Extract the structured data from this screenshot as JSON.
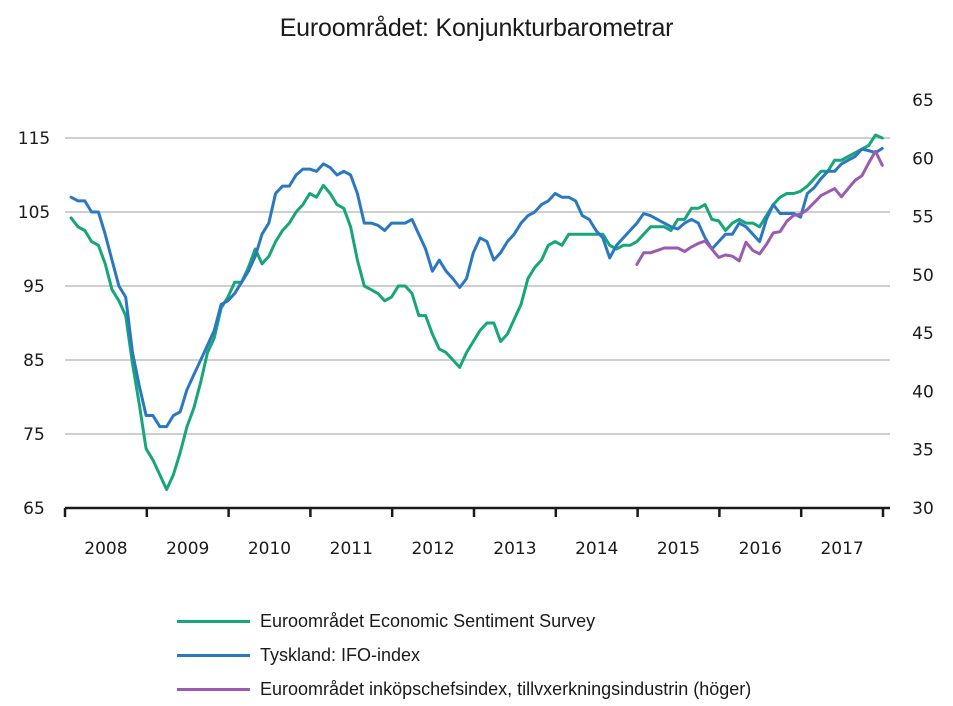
{
  "chart_data": {
    "type": "line",
    "title": "Euroområdet: Konjunkturbarometrar",
    "xlabel": "",
    "ylabel": "",
    "y2label": "",
    "grid": true,
    "legend_position": "bottom",
    "x_start": "2008-01",
    "x_frequency": "monthly",
    "x_categories": [
      "2008",
      "2009",
      "2010",
      "2011",
      "2012",
      "2013",
      "2014",
      "2015",
      "2016",
      "2017"
    ],
    "ylim": [
      65,
      115
    ],
    "y_ticks": [
      65,
      75,
      85,
      95,
      105,
      115
    ],
    "y2lim": [
      30,
      65
    ],
    "y2_ticks": [
      30,
      35,
      40,
      45,
      50,
      55,
      60,
      65
    ],
    "series": [
      {
        "name": "Euroområdet Economic Sentiment Survey",
        "axis": "left",
        "color": "#17a57a",
        "start": "2008-01",
        "values": [
          104.2,
          103,
          102.5,
          101,
          100.5,
          98,
          94.5,
          93,
          91,
          84.5,
          79,
          73,
          71.5,
          69.5,
          67.5,
          69.5,
          72.5,
          76,
          78.5,
          82,
          86,
          88,
          92,
          93.5,
          95.5,
          95.5,
          97.5,
          100,
          98,
          99,
          101,
          102.5,
          103.5,
          105,
          106,
          107.5,
          107,
          108.6,
          107.5,
          106,
          105.5,
          103,
          98.5,
          95,
          94.5,
          94,
          93,
          93.5,
          95,
          95,
          94,
          91,
          91,
          88.5,
          86.5,
          86,
          85,
          84,
          86,
          87.5,
          89,
          90,
          90,
          87.5,
          88.5,
          90.5,
          92.5,
          96,
          97.5,
          98.5,
          100.5,
          101,
          100.5,
          102,
          102,
          102,
          102,
          102,
          102,
          100.5,
          100,
          100.5,
          100.5,
          101,
          102,
          103,
          103,
          103,
          102.5,
          104,
          104,
          105.5,
          105.5,
          106,
          104,
          103.8,
          102.5,
          103.5,
          104,
          103.5,
          103.5,
          103,
          104.5,
          106,
          107,
          107.5,
          107.5,
          107.8,
          108.5,
          109.5,
          110.5,
          110.5,
          112,
          112,
          112.5,
          113,
          113.5,
          114,
          115.4,
          115
        ]
      },
      {
        "name": "Tyskland: IFO-index",
        "axis": "left",
        "color": "#2b78c2",
        "start": "2008-01",
        "values": [
          107,
          106.5,
          106.5,
          105,
          105,
          102,
          98.5,
          95,
          93.5,
          86,
          81.5,
          77.5,
          77.5,
          76,
          76,
          77.5,
          78,
          81,
          83,
          85,
          87,
          89,
          92.5,
          93,
          94,
          95.5,
          97,
          99,
          102,
          103.5,
          107.5,
          108.5,
          108.5,
          110,
          110.8,
          110.8,
          110.5,
          111.5,
          111,
          110,
          110.5,
          110,
          107.5,
          103.5,
          103.5,
          103.2,
          102.5,
          103.5,
          103.5,
          103.5,
          104,
          102,
          100,
          97,
          98.5,
          97,
          96,
          94.8,
          96,
          99.5,
          101.5,
          101,
          98.5,
          99.5,
          101,
          102,
          103.5,
          104.5,
          105,
          106,
          106.5,
          107.5,
          107,
          107,
          106.5,
          104.5,
          104,
          102.5,
          101.5,
          98.8,
          100.5,
          101.5,
          102.5,
          103.5,
          104.8,
          104.5,
          104,
          103.5,
          103,
          102.7,
          103.5,
          104,
          103.5,
          101.5,
          100,
          101,
          102,
          102,
          103.5,
          103,
          102,
          101,
          104,
          106,
          104.8,
          104.8,
          104.8,
          104.3,
          107.5,
          108.3,
          109.5,
          110.5,
          110.5,
          111.5,
          112,
          112.5,
          113.5,
          113.3,
          113,
          113.6
        ]
      },
      {
        "name": "Euroområdet inköpschefsindex, tillvxerkningsindustrin (höger)",
        "axis": "right",
        "color": "#9a5bb0",
        "start": "2014-12",
        "values": [
          50.9,
          51.9,
          51.9,
          52.1,
          52.3,
          52.3,
          52.3,
          52.0,
          52.4,
          52.7,
          52.9,
          52.2,
          51.5,
          51.7,
          51.6,
          51.2,
          52.8,
          52.1,
          51.8,
          52.6,
          53.6,
          53.7,
          54.6,
          55.1,
          55.2,
          55.6,
          56.2,
          56.8,
          57.1,
          57.4,
          56.7,
          57.4,
          58.1,
          58.5,
          59.6,
          60.6,
          59.4
        ]
      }
    ]
  }
}
